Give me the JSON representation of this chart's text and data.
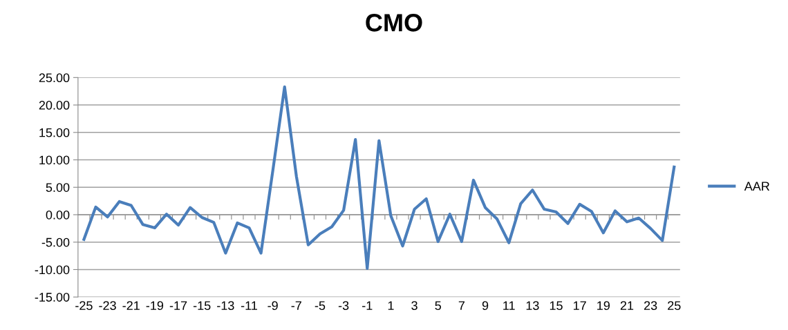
{
  "chart_data": {
    "type": "line",
    "title": "CMO",
    "categories": [
      "-25",
      null,
      "-23",
      null,
      "-21",
      null,
      "-19",
      null,
      "-17",
      null,
      "-15",
      null,
      "-13",
      null,
      "-11",
      null,
      "-9",
      null,
      "-7",
      null,
      "-5",
      null,
      "-3",
      null,
      "-1",
      null,
      "1",
      null,
      "3",
      null,
      "5",
      null,
      "7",
      null,
      "9",
      null,
      "11",
      null,
      "13",
      null,
      "15",
      null,
      "17",
      null,
      "19",
      null,
      "21",
      null,
      "23",
      null,
      "25"
    ],
    "series": [
      {
        "name": "AAR",
        "color": "#4a7ebb",
        "values": [
          -4.5,
          1.4,
          -0.4,
          2.4,
          1.7,
          -1.8,
          -2.4,
          0.1,
          -1.9,
          1.3,
          -0.5,
          -1.4,
          -7.0,
          -1.5,
          -2.4,
          -7.0,
          8.0,
          23.3,
          7.0,
          -5.5,
          -3.5,
          -2.2,
          0.8,
          13.7,
          -9.8,
          13.5,
          -0.2,
          -5.7,
          1.0,
          2.9,
          -4.9,
          0.1,
          -4.9,
          6.3,
          1.3,
          -0.8,
          -5.1,
          2.0,
          4.5,
          1.0,
          0.5,
          -1.6,
          1.9,
          0.6,
          -3.3,
          0.7,
          -1.3,
          -0.6,
          -2.5,
          -4.7,
          8.7
        ]
      }
    ],
    "ylim": [
      -15,
      25
    ],
    "yticks": [
      {
        "value": -15,
        "label": "-15.00"
      },
      {
        "value": -10,
        "label": "-10.00"
      },
      {
        "value": -5,
        "label": "-5.00"
      },
      {
        "value": 0,
        "label": "0.00"
      },
      {
        "value": 5,
        "label": "5.00"
      },
      {
        "value": 10,
        "label": "10.00"
      },
      {
        "value": 15,
        "label": "15.00"
      },
      {
        "value": 20,
        "label": "20.00"
      },
      {
        "value": 25,
        "label": "25.00"
      }
    ],
    "grid": "y",
    "legend": "right",
    "marker": "none",
    "line_style": "solid"
  }
}
